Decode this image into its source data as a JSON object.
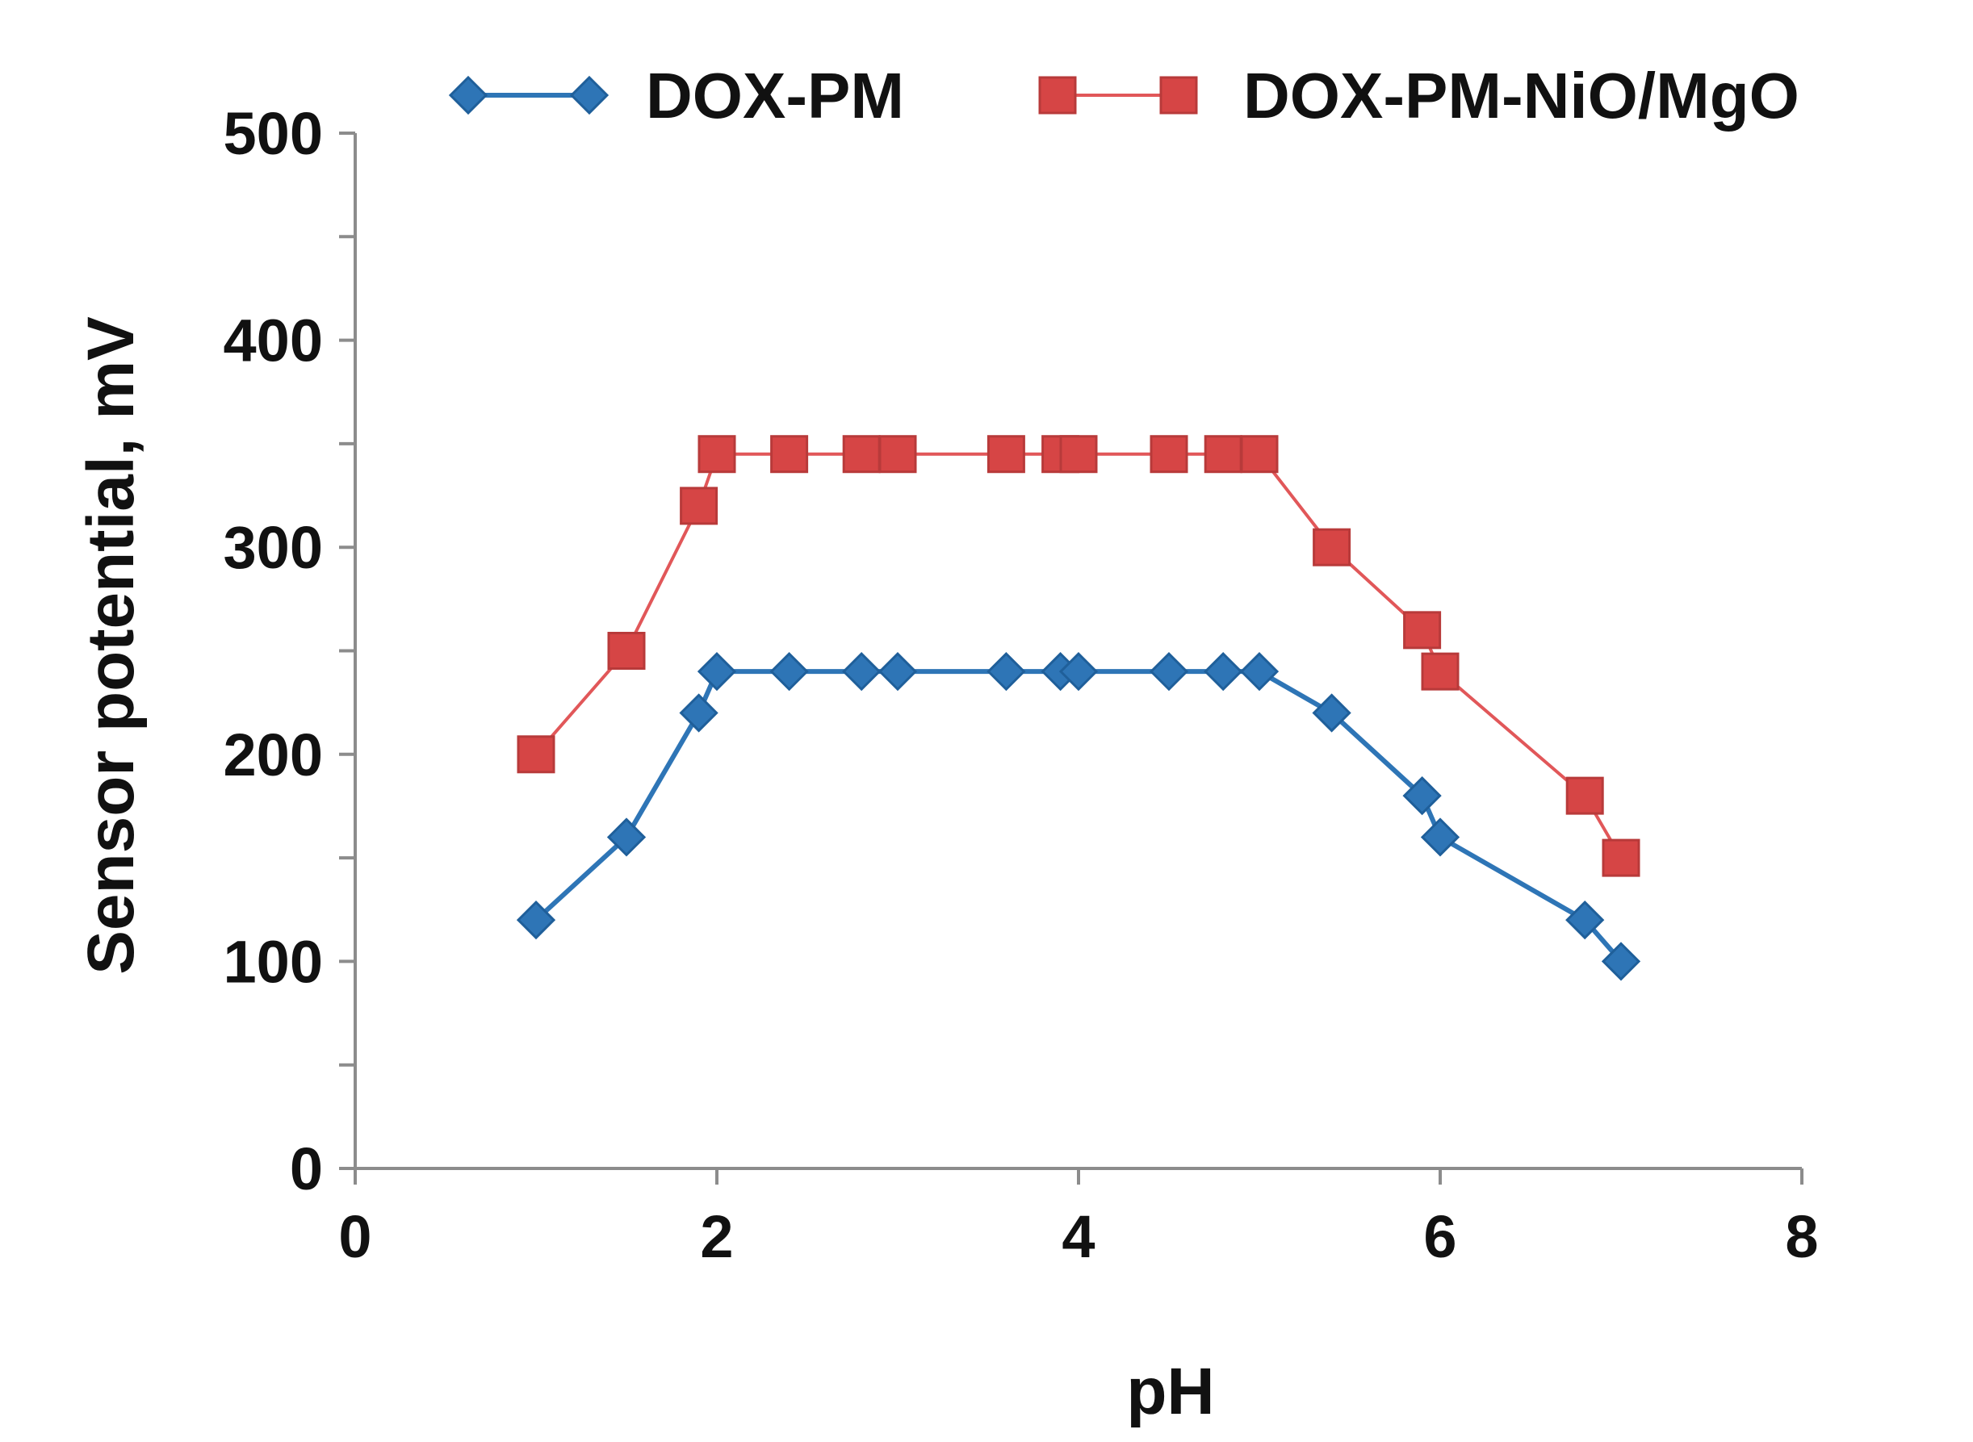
{
  "chart_data": {
    "type": "line",
    "xlabel": "pH",
    "ylabel": "Sensor potential, mV",
    "xlim": [
      0,
      8
    ],
    "ylim": [
      0,
      500
    ],
    "x_ticks": [
      "0",
      "2",
      "4",
      "6",
      "8"
    ],
    "y_ticks": [
      "0",
      "100",
      "200",
      "300",
      "400",
      "500"
    ],
    "grid": false,
    "legend_position": "top",
    "series": [
      {
        "name": "DOX-PM",
        "color": "#2e75b6",
        "marker": "diamond",
        "x": [
          1.0,
          1.5,
          1.9,
          2.0,
          2.4,
          2.8,
          3.0,
          3.6,
          3.9,
          4.0,
          4.5,
          4.8,
          5.0,
          5.4,
          5.9,
          6.0,
          6.8,
          7.0
        ],
        "y": [
          120,
          160,
          220,
          240,
          240,
          240,
          240,
          240,
          240,
          240,
          240,
          240,
          240,
          220,
          180,
          160,
          120,
          100
        ]
      },
      {
        "name": "DOX-PM-NiO/MgO",
        "color": "#e15759",
        "marker": "square",
        "x": [
          1.0,
          1.5,
          1.9,
          2.0,
          2.4,
          2.8,
          3.0,
          3.6,
          3.9,
          4.0,
          4.5,
          4.8,
          5.0,
          5.4,
          5.9,
          6.0,
          6.8,
          7.0
        ],
        "y": [
          200,
          250,
          320,
          345,
          345,
          345,
          345,
          345,
          345,
          345,
          345,
          345,
          345,
          300,
          260,
          240,
          180,
          150
        ]
      }
    ]
  }
}
